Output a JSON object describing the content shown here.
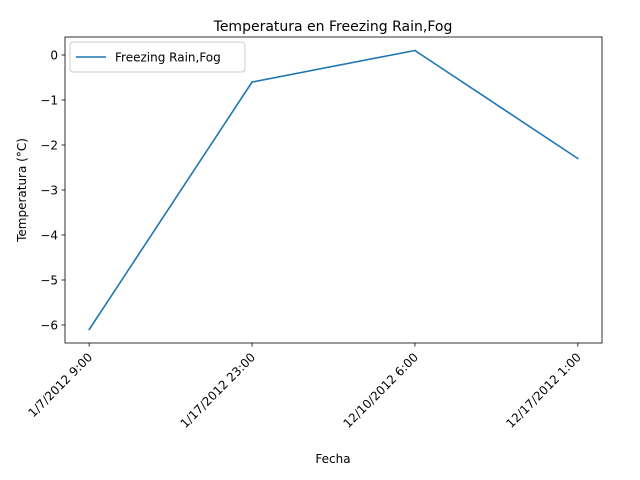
{
  "chart_data": {
    "type": "line",
    "title": "Temperatura en Freezing Rain,Fog",
    "xlabel": "Fecha",
    "ylabel": "Temperatura (°C)",
    "categories": [
      "1/7/2012 9:00",
      "1/17/2012 23:00",
      "12/10/2012 6:00",
      "12/17/2012 1:00"
    ],
    "series": [
      {
        "name": "Freezing Rain,Fog",
        "values": [
          -6.1,
          -0.6,
          0.1,
          -2.3
        ],
        "color": "#1f77b4"
      }
    ],
    "ylim": [
      -6.4,
      0.4
    ],
    "yticks": [
      0,
      -1,
      -2,
      -3,
      -4,
      -5,
      -6
    ],
    "ytick_labels": [
      "0",
      "−1",
      "−2",
      "−3",
      "−4",
      "−5",
      "−6"
    ],
    "legend_position": "top-left",
    "grid": false
  }
}
